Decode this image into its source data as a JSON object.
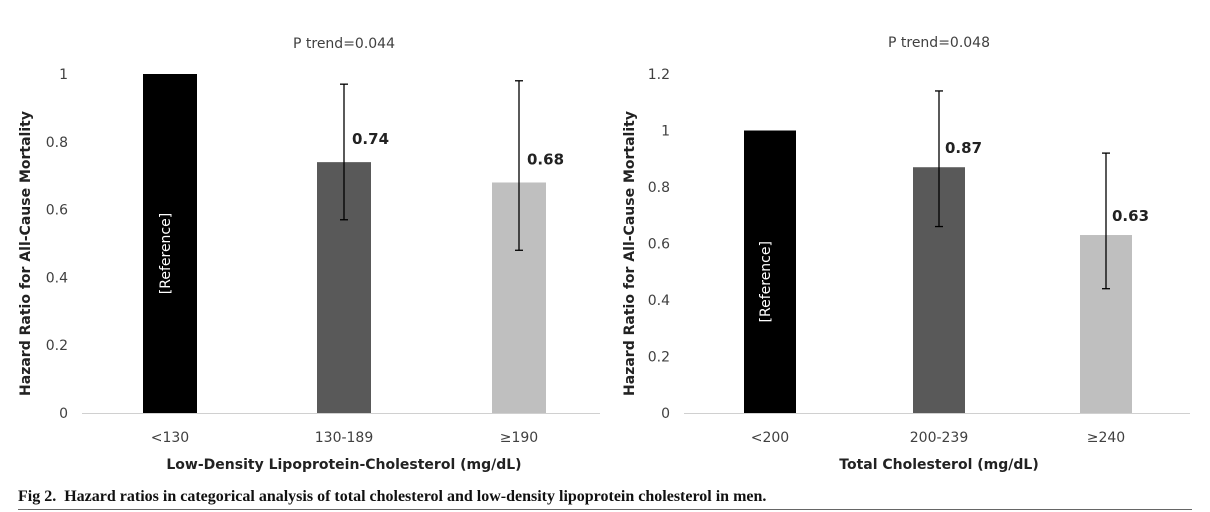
{
  "figure": {
    "caption_label": "Fig 2.",
    "caption_text": "Hazard ratios in categorical analysis of total cholesterol and low-density lipoprotein cholesterol in men."
  },
  "chart_data": [
    {
      "type": "bar",
      "title": "P trend=0.044",
      "xlabel": "Low-Density Lipoprotein-Cholesterol (mg/dL)",
      "ylabel": "Hazard Ratio for All-Cause Mortality",
      "categories": [
        "<130",
        "130-189",
        "≥190"
      ],
      "values": [
        1,
        0.74,
        0.68
      ],
      "error_bars": [
        null,
        [
          0.57,
          0.97
        ],
        [
          0.48,
          0.98
        ]
      ],
      "data_labels": [
        "[Reference]",
        "0.74",
        "0.68"
      ],
      "bar_colors": [
        "#000000",
        "#595959",
        "#bfbfbf"
      ],
      "ylim": [
        0,
        1
      ],
      "yticks": [
        0,
        0.2,
        0.4,
        0.6,
        0.8,
        1
      ],
      "ytick_labels": [
        "0",
        "0.2",
        "0.4",
        "0.6",
        "0.8",
        "1"
      ],
      "grid": false
    },
    {
      "type": "bar",
      "title": "P trend=0.048",
      "xlabel": "Total Cholesterol (mg/dL)",
      "ylabel": "Hazard Ratio for All-Cause Mortality",
      "categories": [
        "<200",
        "200-239",
        "≥240"
      ],
      "values": [
        1,
        0.87,
        0.63
      ],
      "error_bars": [
        null,
        [
          0.66,
          1.14
        ],
        [
          0.44,
          0.92
        ]
      ],
      "data_labels": [
        "[Reference]",
        "0.87",
        "0.63"
      ],
      "bar_colors": [
        "#000000",
        "#595959",
        "#bfbfbf"
      ],
      "ylim": [
        0,
        1.2
      ],
      "yticks": [
        0,
        0.2,
        0.4,
        0.6,
        0.8,
        1,
        1.2
      ],
      "ytick_labels": [
        "0",
        "0.2",
        "0.4",
        "0.6",
        "0.8",
        "1",
        "1.2"
      ],
      "grid": false
    }
  ]
}
